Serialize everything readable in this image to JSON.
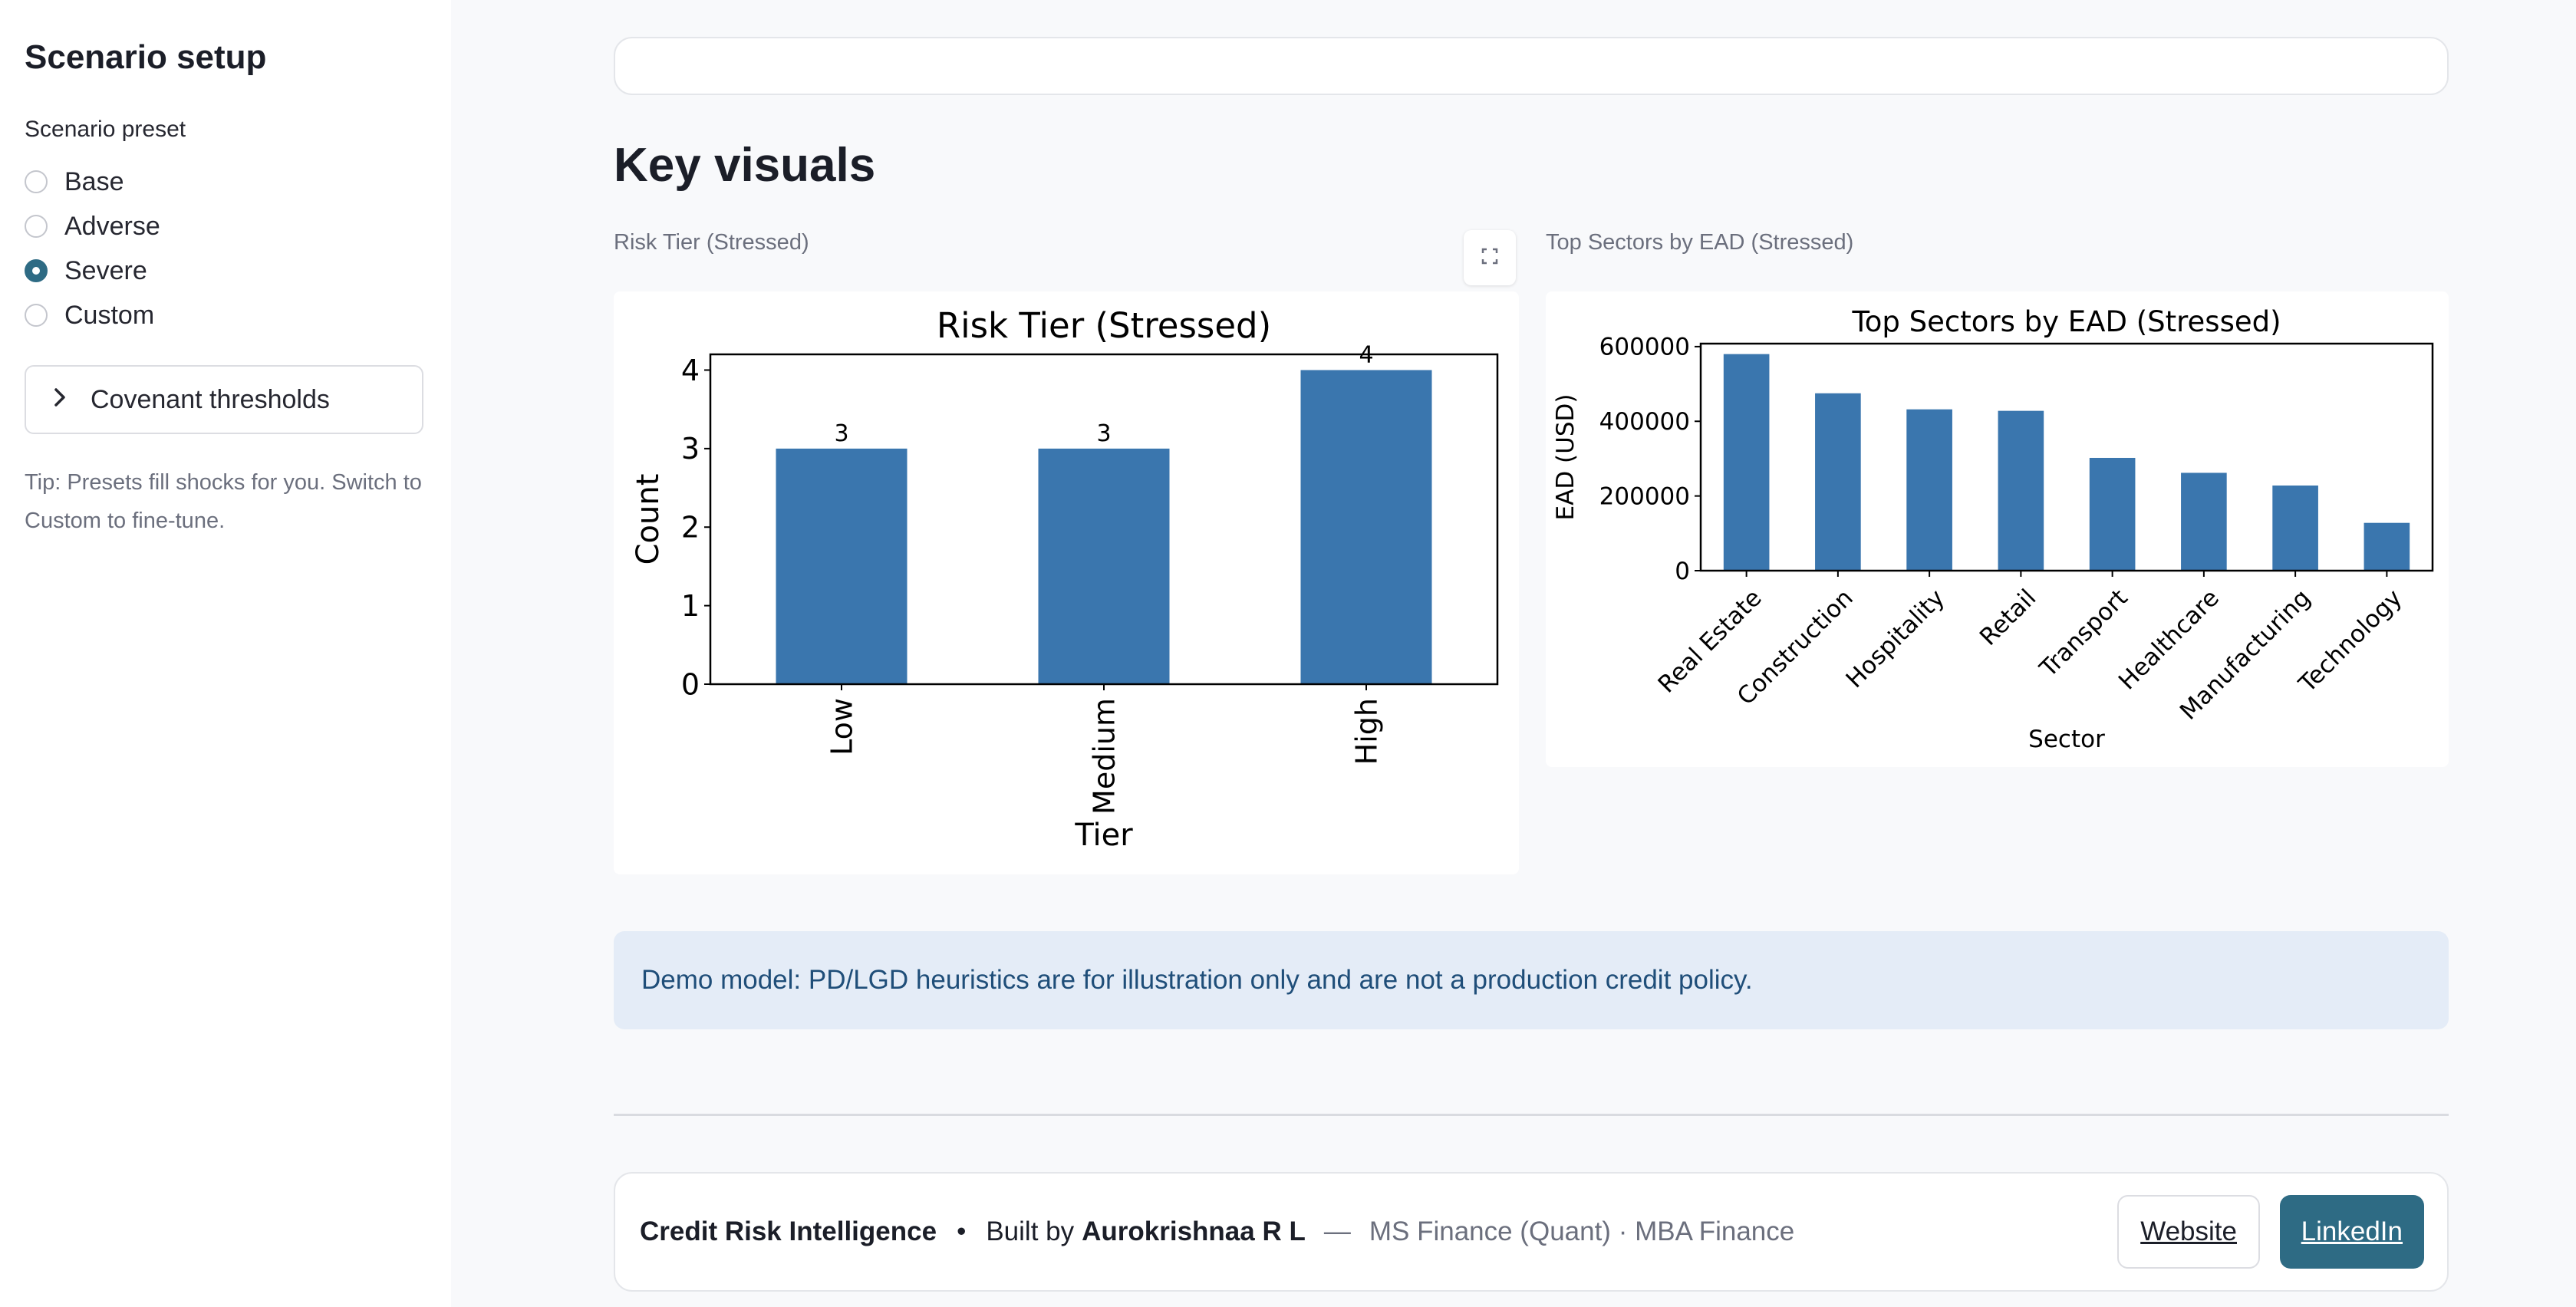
{
  "sidebar": {
    "title": "Scenario setup",
    "preset_label": "Scenario preset",
    "options": [
      {
        "label": "Base",
        "checked": false
      },
      {
        "label": "Adverse",
        "checked": false
      },
      {
        "label": "Severe",
        "checked": true
      },
      {
        "label": "Custom",
        "checked": false
      }
    ],
    "expander_label": "Covenant thresholds",
    "tip": "Tip: Presets fill shocks for you. Switch to Custom to fine-tune."
  },
  "main": {
    "heading": "Key visuals",
    "caption_left": "Risk Tier (Stressed)",
    "caption_right": "Top Sectors by EAD (Stressed)",
    "info": "Demo model: PD/LGD heuristics are for illustration only and are not a production credit policy."
  },
  "footer": {
    "app_name": "Credit Risk Intelligence",
    "bullet": "•",
    "built_by": "Built by",
    "author": "Aurokrishnaa R L",
    "dash": "—",
    "credentials": "MS Finance (Quant) · MBA Finance",
    "website_label": "Website",
    "linkedin_label": "LinkedIn"
  },
  "colors": {
    "bar": "#3a76ae",
    "accent": "#2e6b84"
  },
  "chart_data": [
    {
      "type": "bar",
      "title": "Risk Tier (Stressed)",
      "xlabel": "Tier",
      "ylabel": "Count",
      "categories": [
        "Low",
        "Medium",
        "High"
      ],
      "values": [
        3,
        3,
        4
      ],
      "data_labels": [
        "3",
        "3",
        "4"
      ],
      "ylim": [
        0,
        4.2
      ],
      "yticks": [
        0,
        1,
        2,
        3,
        4
      ],
      "xtick_rotation": 90,
      "grid": false
    },
    {
      "type": "bar",
      "title": "Top Sectors by EAD (Stressed)",
      "xlabel": "Sector",
      "ylabel": "EAD (USD)",
      "categories": [
        "Real Estate",
        "Construction",
        "Hospitality",
        "Retail",
        "Transport",
        "Healthcare",
        "Manufacturing",
        "Technology"
      ],
      "values": [
        580000,
        475000,
        432000,
        428000,
        302000,
        262000,
        228000,
        128000
      ],
      "ylim": [
        0,
        608000
      ],
      "yticks": [
        0,
        200000,
        400000,
        600000
      ],
      "xtick_rotation": 45,
      "grid": false
    }
  ]
}
